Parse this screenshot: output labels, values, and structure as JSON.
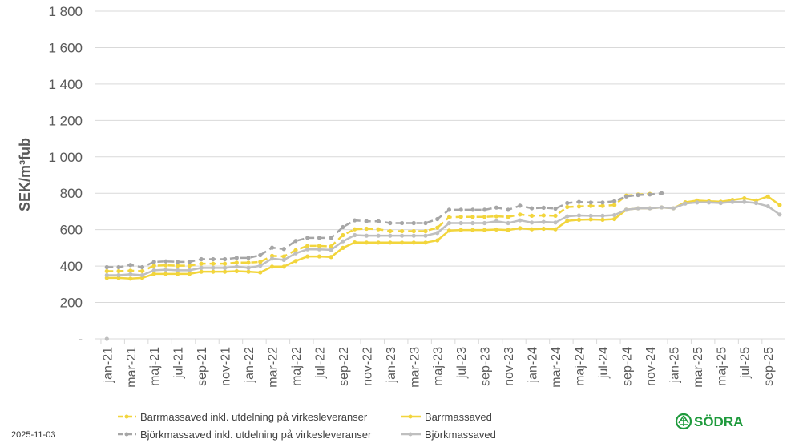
{
  "footer": {
    "date": "2025-11-03",
    "logo_text": "SÖDRA"
  },
  "chart_data": {
    "type": "line",
    "title": "",
    "xlabel": "",
    "ylabel": "SEK/m³fub",
    "ylim": [
      0,
      1800
    ],
    "y_ticks": [
      0,
      200,
      400,
      600,
      800,
      1000,
      1200,
      1400,
      1600,
      1800
    ],
    "y_tick_labels": [
      "-",
      "200",
      "400",
      "600",
      "800",
      "1 000",
      "1 200",
      "1 400",
      "1 600",
      "1 800"
    ],
    "x_tick_labels": [
      "jan-21",
      "mar-21",
      "maj-21",
      "jul-21",
      "sep-21",
      "nov-21",
      "jan-22",
      "mar-22",
      "maj-22",
      "jul-22",
      "sep-22",
      "nov-22",
      "jan-23",
      "mar-23",
      "maj-23",
      "jul-23",
      "sep-23",
      "nov-23",
      "jan-24",
      "mar-24",
      "maj-24",
      "jul-24",
      "sep-24",
      "nov-24",
      "jan-25",
      "mar-25",
      "maj-25",
      "jul-25",
      "sep-25"
    ],
    "x_frequency": "monthly, jan-21 to okt-25",
    "grid": "horizontal",
    "legend_placement": "bottom",
    "series": [
      {
        "name": "Barrmassaved inkl. utdelning på virkesleveranser",
        "color": "#f2d53c",
        "dash": true,
        "values": [
          372,
          372,
          375,
          372,
          402,
          404,
          402,
          402,
          413,
          413,
          413,
          419,
          419,
          423,
          456,
          453,
          487,
          511,
          511,
          508,
          570,
          602,
          605,
          602,
          592,
          592,
          592,
          592,
          611,
          668,
          670,
          670,
          670,
          673,
          670,
          683,
          676,
          678,
          676,
          724,
          727,
          730,
          730,
          735,
          787,
          793,
          796,
          null,
          null,
          null,
          null,
          null,
          null,
          null,
          null,
          null,
          null,
          null
        ]
      },
      {
        "name": "Barrmassaved",
        "color": "#f2d53c",
        "dash": false,
        "values": [
          335,
          335,
          331,
          335,
          357,
          357,
          357,
          357,
          369,
          369,
          369,
          372,
          369,
          365,
          397,
          397,
          428,
          453,
          453,
          450,
          500,
          530,
          529,
          529,
          529,
          529,
          529,
          529,
          541,
          595,
          598,
          598,
          598,
          601,
          598,
          608,
          602,
          605,
          602,
          648,
          654,
          656,
          654,
          658,
          709,
          717,
          717,
          722,
          717,
          750,
          760,
          756,
          753,
          763,
          772,
          760,
          782,
          735
        ]
      },
      {
        "name": "Björkmassaved inkl. utdelning på virkesleveranser",
        "color": "#a6a6a6",
        "dash": true,
        "values": [
          394,
          394,
          406,
          394,
          423,
          426,
          423,
          423,
          438,
          438,
          438,
          445,
          445,
          460,
          501,
          494,
          538,
          555,
          555,
          555,
          614,
          651,
          646,
          646,
          636,
          636,
          636,
          636,
          658,
          709,
          709,
          709,
          709,
          721,
          709,
          731,
          717,
          720,
          715,
          746,
          752,
          749,
          749,
          756,
          782,
          790,
          793,
          800,
          null,
          null,
          null,
          null,
          null,
          null,
          null,
          null,
          null,
          null
        ]
      },
      {
        "name": "Björkmassaved",
        "color": "#bfbfbf",
        "dash": false,
        "values": [
          350,
          350,
          355,
          350,
          377,
          380,
          377,
          377,
          390,
          390,
          390,
          397,
          390,
          402,
          441,
          434,
          470,
          492,
          492,
          489,
          536,
          570,
          567,
          567,
          567,
          567,
          567,
          567,
          582,
          636,
          636,
          636,
          636,
          646,
          636,
          651,
          639,
          642,
          639,
          673,
          678,
          676,
          676,
          680,
          709,
          717,
          717,
          722,
          717,
          743,
          749,
          749,
          746,
          752,
          752,
          746,
          728,
          683
        ]
      },
      {
        "color": "#bfbfbf",
        "dash": false,
        "values": [
          0
        ]
      }
    ]
  }
}
